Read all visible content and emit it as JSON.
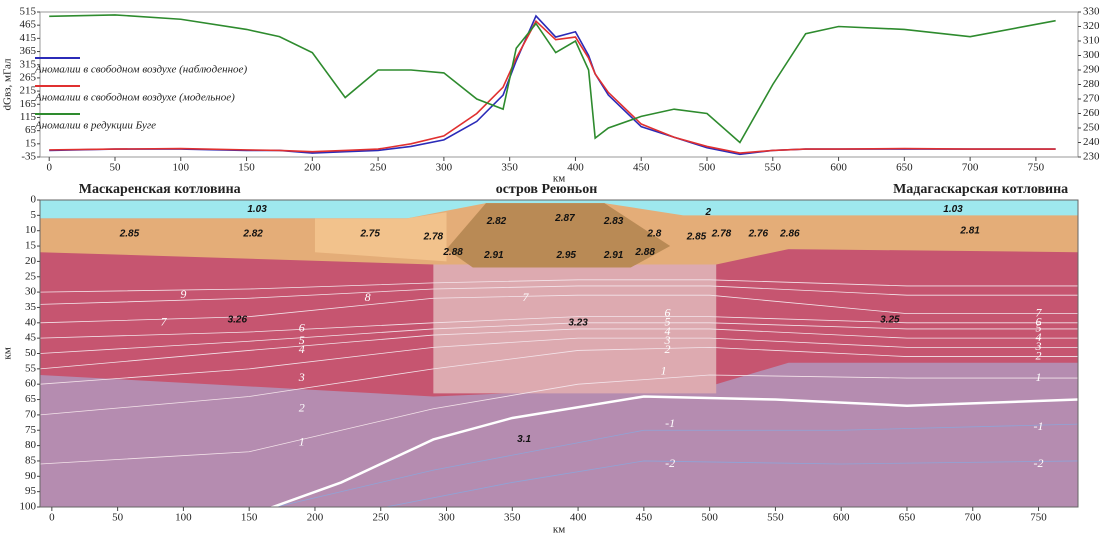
{
  "chart_data": [
    {
      "type": "line",
      "ylabel": "dGвз, мГал",
      "xlabel": "км",
      "xlim": [
        -7,
        782
      ],
      "xticks": [
        0,
        50,
        100,
        150,
        200,
        250,
        300,
        350,
        400,
        450,
        500,
        550,
        600,
        650,
        700,
        750
      ],
      "ylim": [
        -35,
        515
      ],
      "yticks": [
        -35,
        15,
        65,
        115,
        165,
        215,
        265,
        315,
        365,
        415,
        465,
        515
      ],
      "y2lim": [
        230,
        330
      ],
      "y2ticks": [
        230,
        240,
        250,
        260,
        270,
        280,
        290,
        300,
        310,
        320,
        330
      ],
      "legend": "upper-left",
      "x": [
        0,
        50,
        100,
        150,
        175,
        200,
        225,
        250,
        275,
        300,
        325,
        345,
        355,
        370,
        385,
        400,
        410,
        415,
        425,
        450,
        475,
        500,
        525,
        550,
        575,
        600,
        650,
        700,
        765
      ],
      "series": [
        {
          "name": "Аномалии в свободном воздухе (наблюденное)",
          "color": "#2b2bb8",
          "values": [
            -10,
            -5,
            -5,
            -10,
            -10,
            -20,
            -15,
            -10,
            5,
            30,
            100,
            200,
            330,
            500,
            420,
            440,
            350,
            280,
            200,
            80,
            40,
            0,
            -25,
            -10,
            -5,
            -5,
            -5,
            -5,
            -5
          ]
        },
        {
          "name": "Аномалии в свободном воздухе (модельное)",
          "color": "#e03030",
          "values": [
            -8,
            -5,
            -3,
            -8,
            -10,
            -15,
            -10,
            -5,
            15,
            45,
            130,
            230,
            340,
            480,
            410,
            420,
            340,
            280,
            210,
            90,
            40,
            5,
            -20,
            -10,
            -5,
            -5,
            -3,
            -5,
            -5
          ]
        },
        {
          "name": "Аномалии в редукции Буге",
          "color": "#2e8b2e",
          "axis": "y2",
          "values": [
            327,
            328,
            325,
            318,
            313,
            302,
            271,
            290,
            290,
            288,
            270,
            263,
            305,
            322,
            302,
            310,
            290,
            243,
            250,
            258,
            263,
            260,
            240,
            280,
            315,
            320,
            318,
            313,
            324
          ]
        }
      ]
    },
    {
      "type": "section",
      "xlabel": "км",
      "ylabel": "км",
      "xlim": [
        -9,
        780
      ],
      "xticks": [
        0,
        50,
        100,
        150,
        200,
        250,
        300,
        350,
        400,
        450,
        500,
        550,
        600,
        650,
        700,
        750
      ],
      "ylim": [
        0,
        100
      ],
      "y_inverted": true,
      "yticks": [
        0,
        5,
        10,
        15,
        20,
        25,
        30,
        35,
        40,
        45,
        50,
        55,
        60,
        65,
        70,
        75,
        80,
        85,
        90,
        95,
        100
      ],
      "regions": [
        {
          "text": "Маскаренская котловина",
          "x": 82
        },
        {
          "text": "остров Реюньон",
          "x": 376
        },
        {
          "text": "Мадагаскарская котловина",
          "x": 706
        }
      ],
      "layers": [
        {
          "color": "#b58cb0",
          "polygon": [
            [
              -9,
              0
            ],
            [
              780,
              0
            ],
            [
              780,
              100
            ],
            [
              -9,
              100
            ]
          ]
        },
        {
          "color": "#c65570",
          "polygon": [
            [
              -9,
              16
            ],
            [
              780,
              16
            ],
            [
              780,
              53
            ],
            [
              560,
              53
            ],
            [
              505,
              60
            ],
            [
              290,
              64
            ],
            [
              -9,
              57
            ]
          ]
        },
        {
          "color": "#ddaab0",
          "polygon": [
            [
              290,
              18
            ],
            [
              505,
              18
            ],
            [
              505,
              63
            ],
            [
              290,
              63
            ]
          ]
        },
        {
          "color": "#9ee8ee",
          "polygon": [
            [
              -9,
              0
            ],
            [
              780,
              0
            ],
            [
              780,
              6
            ],
            [
              -9,
              6
            ]
          ]
        },
        {
          "color": "#e4ad78",
          "polygon": [
            [
              -9,
              6
            ],
            [
              270,
              6
            ],
            [
              330,
              1
            ],
            [
              420,
              1
            ],
            [
              480,
              5
            ],
            [
              780,
              5
            ],
            [
              780,
              17
            ],
            [
              560,
              16
            ],
            [
              505,
              21
            ],
            [
              290,
              21
            ],
            [
              -9,
              17
            ]
          ]
        },
        {
          "color": "#f2c28c",
          "polygon": [
            [
              200,
              6
            ],
            [
              270,
              6
            ],
            [
              300,
              4
            ],
            [
              300,
              20
            ],
            [
              200,
              17
            ]
          ]
        },
        {
          "color": "#b98a55",
          "polygon": [
            [
              330,
              1
            ],
            [
              420,
              1
            ],
            [
              470,
              15
            ],
            [
              440,
              22
            ],
            [
              320,
              22
            ],
            [
              300,
              16
            ]
          ]
        }
      ],
      "isolines": [
        {
          "value": 9,
          "points": [
            [
              -9,
              30
            ],
            [
              150,
              29
            ],
            [
              290,
              27
            ],
            [
              400,
              26
            ],
            [
              500,
              26
            ],
            [
              650,
              28
            ],
            [
              780,
              28
            ]
          ],
          "labels": [
            [
              100,
              31
            ]
          ]
        },
        {
          "value": 8,
          "points": [
            [
              -9,
              34
            ],
            [
              150,
              32
            ],
            [
              290,
              29
            ],
            [
              400,
              28
            ],
            [
              500,
              28
            ],
            [
              650,
              31
            ],
            [
              780,
              31
            ]
          ],
          "labels": [
            [
              240,
              32
            ]
          ]
        },
        {
          "value": 7,
          "points": [
            [
              -9,
              40
            ],
            [
              150,
              38
            ],
            [
              290,
              32
            ],
            [
              400,
              31
            ],
            [
              500,
              31
            ],
            [
              650,
              37
            ],
            [
              780,
              37
            ]
          ],
          "labels": [
            [
              85,
              40
            ],
            [
              360,
              32
            ],
            [
              750,
              37
            ]
          ]
        },
        {
          "value": 6,
          "points": [
            [
              -9,
              45
            ],
            [
              150,
              43
            ],
            [
              290,
              40
            ],
            [
              400,
              38
            ],
            [
              500,
              38
            ],
            [
              650,
              40
            ],
            [
              780,
              40
            ]
          ],
          "labels": [
            [
              190,
              42
            ],
            [
              468,
              37
            ],
            [
              750,
              40
            ]
          ]
        },
        {
          "value": 5,
          "points": [
            [
              -9,
              50
            ],
            [
              150,
              46
            ],
            [
              290,
              42
            ],
            [
              400,
              40
            ],
            [
              500,
              40
            ],
            [
              650,
              42
            ],
            [
              780,
              42
            ]
          ],
          "labels": [
            [
              190,
              46
            ],
            [
              468,
              40
            ],
            [
              750,
              42
            ]
          ]
        },
        {
          "value": 4,
          "points": [
            [
              -9,
              55
            ],
            [
              150,
              49
            ],
            [
              290,
              44
            ],
            [
              400,
              42
            ],
            [
              500,
              42
            ],
            [
              650,
              45
            ],
            [
              780,
              45
            ]
          ],
          "labels": [
            [
              190,
              49
            ],
            [
              468,
              43
            ],
            [
              750,
              45
            ]
          ]
        },
        {
          "value": 3,
          "points": [
            [
              -9,
              60
            ],
            [
              150,
              55
            ],
            [
              290,
              48
            ],
            [
              400,
              45
            ],
            [
              500,
              45
            ],
            [
              650,
              48
            ],
            [
              780,
              48
            ]
          ],
          "labels": [
            [
              190,
              58
            ],
            [
              468,
              46
            ],
            [
              750,
              48
            ]
          ]
        },
        {
          "value": 2,
          "points": [
            [
              -9,
              70
            ],
            [
              150,
              64
            ],
            [
              290,
              55
            ],
            [
              400,
              49
            ],
            [
              500,
              48
            ],
            [
              650,
              51
            ],
            [
              780,
              51
            ]
          ],
          "labels": [
            [
              190,
              68
            ],
            [
              468,
              49
            ],
            [
              750,
              51
            ]
          ]
        },
        {
          "value": 1,
          "points": [
            [
              -9,
              86
            ],
            [
              150,
              82
            ],
            [
              290,
              68
            ],
            [
              400,
              60
            ],
            [
              500,
              57
            ],
            [
              650,
              58
            ],
            [
              780,
              58
            ]
          ],
          "labels": [
            [
              190,
              79
            ],
            [
              465,
              56
            ],
            [
              750,
              58
            ]
          ]
        },
        {
          "value": -1,
          "points": [
            [
              150,
              102
            ],
            [
              290,
              88
            ],
            [
              450,
              75
            ],
            [
              600,
              75
            ],
            [
              780,
              73
            ]
          ],
          "labels": [
            [
              470,
              73
            ],
            [
              750,
              74
            ]
          ]
        },
        {
          "value": -2,
          "points": [
            [
              230,
              102
            ],
            [
              350,
              92
            ],
            [
              450,
              85
            ],
            [
              600,
              86
            ],
            [
              780,
              85
            ]
          ],
          "labels": [
            [
              470,
              86
            ],
            [
              750,
              86
            ]
          ]
        }
      ],
      "moho": [
        [
          155,
          102
        ],
        [
          220,
          92
        ],
        [
          290,
          78
        ],
        [
          350,
          71
        ],
        [
          450,
          64
        ],
        [
          550,
          65
        ],
        [
          650,
          67
        ],
        [
          780,
          65
        ]
      ],
      "densities": [
        {
          "value": 1.03,
          "x": 156,
          "depth": 3
        },
        {
          "value": 2.85,
          "x": 59,
          "depth": 11
        },
        {
          "value": 2.82,
          "x": 153,
          "depth": 11
        },
        {
          "value": 2.75,
          "x": 242,
          "depth": 11
        },
        {
          "value": 2.78,
          "x": 290,
          "depth": 12
        },
        {
          "value": 2.82,
          "x": 338,
          "depth": 7
        },
        {
          "value": 2.87,
          "x": 390,
          "depth": 6
        },
        {
          "value": 2.83,
          "x": 427,
          "depth": 7
        },
        {
          "value": 2.8,
          "x": 458,
          "depth": 11
        },
        {
          "value": 2.85,
          "x": 490,
          "depth": 12
        },
        {
          "value": 2.78,
          "x": 509,
          "depth": 11
        },
        {
          "value": 2.76,
          "x": 537,
          "depth": 11
        },
        {
          "value": 2.86,
          "x": 561,
          "depth": 11
        },
        {
          "value": 2,
          "x": 499,
          "depth": 4
        },
        {
          "value": 1.03,
          "x": 685,
          "depth": 3
        },
        {
          "value": 2.81,
          "x": 698,
          "depth": 10
        },
        {
          "value": 2.88,
          "x": 305,
          "depth": 17
        },
        {
          "value": 2.91,
          "x": 336,
          "depth": 18
        },
        {
          "value": 2.95,
          "x": 391,
          "depth": 18
        },
        {
          "value": 2.91,
          "x": 427,
          "depth": 18
        },
        {
          "value": 2.88,
          "x": 451,
          "depth": 17
        },
        {
          "value": 3.26,
          "x": 141,
          "depth": 39
        },
        {
          "value": 3.23,
          "x": 400,
          "depth": 40
        },
        {
          "value": 3.25,
          "x": 637,
          "depth": 39
        },
        {
          "value": 3.1,
          "x": 359,
          "depth": 78
        }
      ]
    }
  ]
}
